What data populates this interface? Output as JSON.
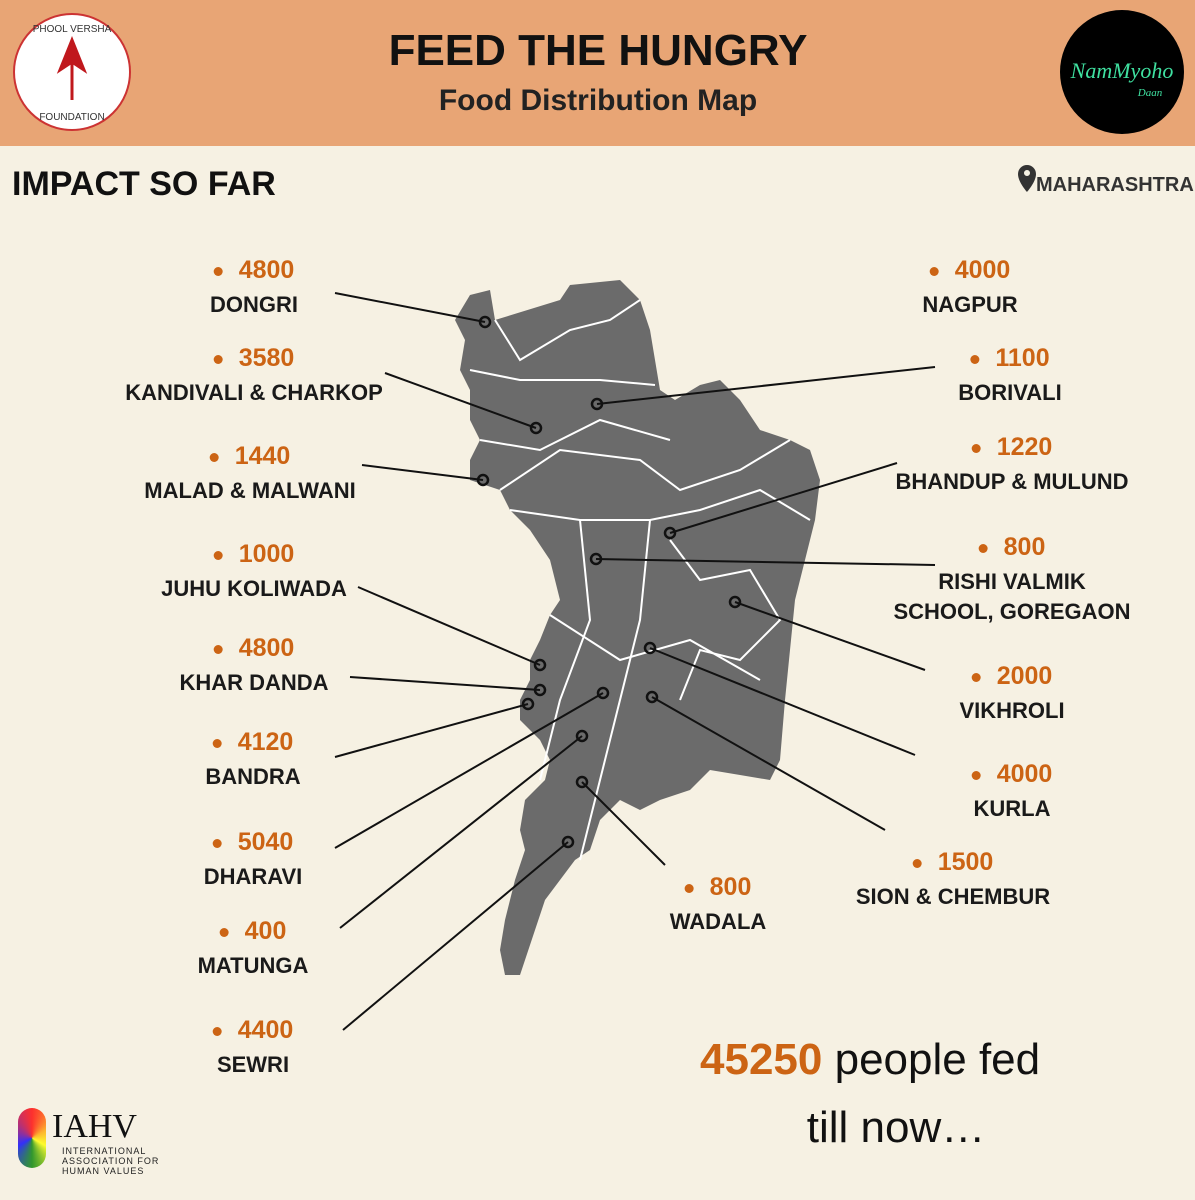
{
  "header": {
    "title": "FEED THE HUNGRY",
    "subtitle": "Food Distribution Map",
    "left_logo": [
      "PHOOL VERSHA",
      "FOUNDATION"
    ],
    "right_logo": [
      "NamMyoho",
      "Daan"
    ]
  },
  "section_title": "IMPACT SO FAR",
  "region": "MAHARASHTRA",
  "locations": [
    {
      "value": 4800,
      "name": [
        "DONGRI"
      ]
    },
    {
      "value": 3580,
      "name": [
        "KANDIVALI & CHARKOP"
      ]
    },
    {
      "value": 1440,
      "name": [
        "MALAD & MALWANI"
      ]
    },
    {
      "value": 1000,
      "name": [
        "JUHU  KOLIWADA"
      ]
    },
    {
      "value": 4800,
      "name": [
        "KHAR DANDA"
      ]
    },
    {
      "value": 4120,
      "name": [
        "BANDRA"
      ]
    },
    {
      "value": 5040,
      "name": [
        "DHARAVI"
      ]
    },
    {
      "value": 400,
      "name": [
        "MATUNGA"
      ]
    },
    {
      "value": 4400,
      "name": [
        "SEWRI"
      ]
    },
    {
      "value": 4000,
      "name": [
        "NAGPUR"
      ]
    },
    {
      "value": 1100,
      "name": [
        "BORIVALI"
      ]
    },
    {
      "value": 1220,
      "name": [
        "BHANDUP & MULUND"
      ]
    },
    {
      "value": 800,
      "name": [
        "RISHI  VALMIK",
        "SCHOOL, GOREGAON"
      ]
    },
    {
      "value": 2000,
      "name": [
        "VIKHROLI"
      ]
    },
    {
      "value": 4000,
      "name": [
        "KURLA"
      ]
    },
    {
      "value": 1500,
      "name": [
        "SION & CHEMBUR"
      ]
    },
    {
      "value": 800,
      "name": [
        "WADALA"
      ]
    }
  ],
  "total": {
    "value": 45250,
    "text": "people fed",
    "text2": "till now…"
  },
  "footer_logo": {
    "title": "IAHV",
    "lines": [
      "INTERNATIONAL",
      "ASSOCIATION FOR",
      "HUMAN VALUES"
    ]
  }
}
